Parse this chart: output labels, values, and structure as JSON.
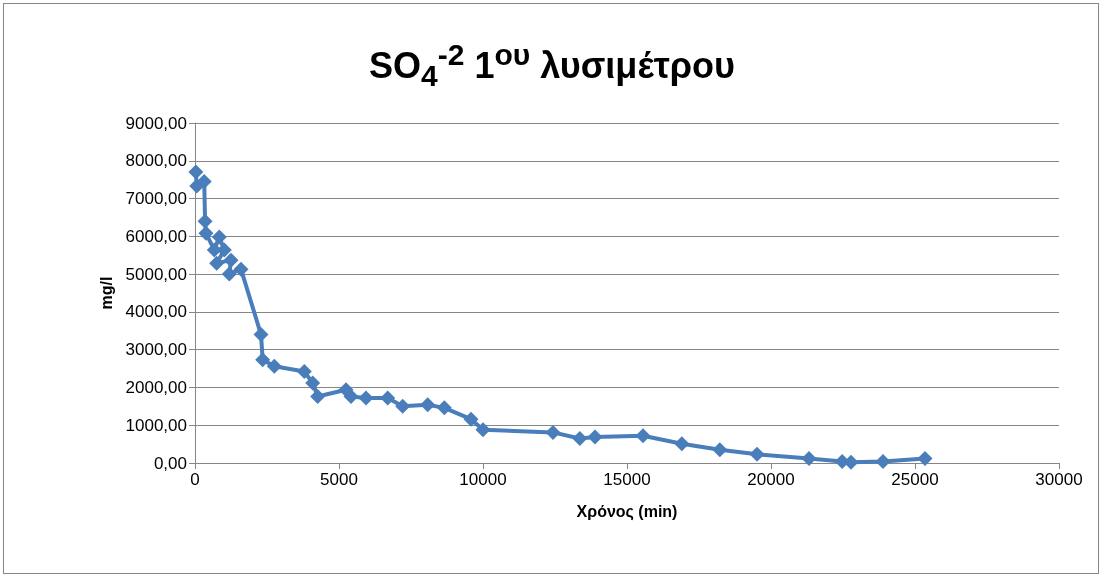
{
  "chart_data": {
    "type": "line",
    "title": "SO$_{4}$$^{-2}$ 1$^{ου}$ λυσιμέτρου",
    "xlabel": "Χρόνος (min)",
    "ylabel": "mg/l",
    "series": [
      {
        "color": "#4a7ebb",
        "x": [
          30,
          60,
          320,
          350,
          380,
          670,
          844,
          1019,
          752,
          1250,
          1192,
          1597,
          2292,
          2351,
          2753,
          3795,
          4087,
          4260,
          5243,
          5417,
          5938,
          6691,
          7212,
          8080,
          8656,
          9583,
          10000,
          12430,
          13361,
          13889,
          15556,
          16903,
          18222,
          19514,
          21319,
          22472,
          22778,
          23889,
          25347
        ],
        "values": [
          7700,
          7330,
          7450,
          6400,
          6080,
          5640,
          5980,
          5640,
          5290,
          5370,
          5000,
          5130,
          3400,
          2730,
          2560,
          2420,
          2120,
          1760,
          1940,
          1760,
          1720,
          1720,
          1500,
          1540,
          1460,
          1160,
          880,
          810,
          650,
          690,
          720,
          510,
          350,
          230,
          120,
          40,
          20,
          40,
          120
        ]
      }
    ],
    "xlim": [
      0,
      30000
    ],
    "xticks": [
      0,
      5000,
      10000,
      15000,
      20000,
      25000,
      30000
    ],
    "ylim": [
      0,
      9000
    ],
    "yticks": [
      {
        "value": 0,
        "label": "0,00"
      },
      {
        "value": 1000,
        "label": "1000,00"
      },
      {
        "value": 2000,
        "label": "2000,00"
      },
      {
        "value": 3000,
        "label": "3000,00"
      },
      {
        "value": 4000,
        "label": "4000,00"
      },
      {
        "value": 5000,
        "label": "5000,00"
      },
      {
        "value": 6000,
        "label": "6000,00"
      },
      {
        "value": 7000,
        "label": "7000,00"
      },
      {
        "value": 8000,
        "label": "8000,00"
      },
      {
        "value": 9000,
        "label": "9000,00"
      }
    ],
    "grid": "y",
    "marker": "diamond",
    "line_style": "solid"
  }
}
